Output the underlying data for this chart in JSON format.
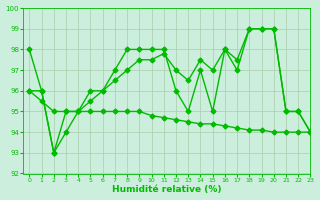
{
  "line1_y": [
    98,
    96,
    93,
    95,
    95,
    96,
    96,
    97,
    98,
    98,
    98,
    98,
    96,
    95,
    97,
    95,
    98,
    97,
    99,
    99,
    99,
    95,
    95,
    94
  ],
  "line2_y": [
    96,
    96,
    93,
    94,
    95,
    95.5,
    96,
    96.5,
    97,
    97.5,
    97.5,
    97.8,
    97,
    96.5,
    97.5,
    97,
    98,
    97.5,
    99,
    99,
    99,
    95,
    95,
    94
  ],
  "line3_y": [
    96,
    95.5,
    95,
    95,
    95,
    95,
    95,
    95,
    95,
    95,
    94.8,
    94.7,
    94.6,
    94.5,
    94.4,
    94.4,
    94.3,
    94.2,
    94.1,
    94.1,
    94.0,
    94.0,
    94.0,
    94.0
  ],
  "x": [
    0,
    1,
    2,
    3,
    4,
    5,
    6,
    7,
    8,
    9,
    10,
    11,
    12,
    13,
    14,
    15,
    16,
    17,
    18,
    19,
    20,
    21,
    22,
    23
  ],
  "line_color": "#00bb00",
  "bg_color": "#cceedd",
  "grid_color": "#aaccaa",
  "xlabel": "Humidité relative (%)",
  "ylim": [
    92,
    100
  ],
  "xlim": [
    -0.5,
    23
  ],
  "yticks": [
    92,
    93,
    94,
    95,
    96,
    97,
    98,
    99,
    100
  ],
  "xticks": [
    0,
    1,
    2,
    3,
    4,
    5,
    6,
    7,
    8,
    9,
    10,
    11,
    12,
    13,
    14,
    15,
    16,
    17,
    18,
    19,
    20,
    21,
    22,
    23
  ],
  "markersize": 2.5,
  "linewidth": 1.0
}
